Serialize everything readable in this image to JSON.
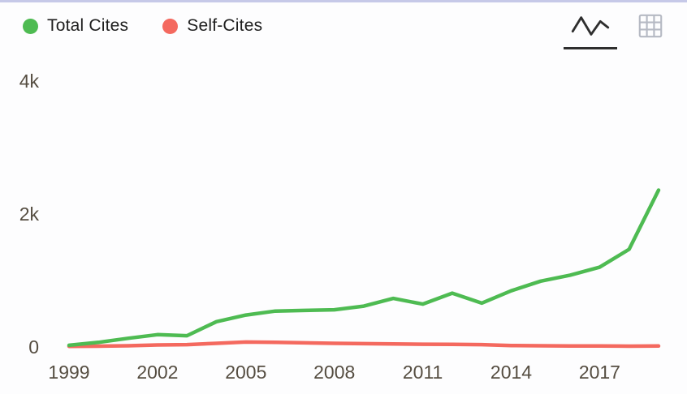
{
  "legend": [
    {
      "label": "Total Cites",
      "color": "#4ebb52"
    },
    {
      "label": "Self-Cites",
      "color": "#f4695f"
    }
  ],
  "toolbar": {
    "active_view": "line-chart",
    "views": [
      "line-chart",
      "table-grid"
    ]
  },
  "colors": {
    "background": "#fdfdfe",
    "top_border": "#c6c9e8",
    "axis_text": "#554d41",
    "icon_active": "#2e2e2e",
    "icon_inactive": "#b5b9c3",
    "total_cites": "#4ebb52",
    "self_cites": "#f4695f"
  },
  "chart_data": {
    "type": "line",
    "title": "",
    "xlabel": "",
    "ylabel": "",
    "grid": false,
    "legend_position": "top-left",
    "x": [
      1999,
      2000,
      2001,
      2002,
      2003,
      2004,
      2005,
      2006,
      2007,
      2008,
      2009,
      2010,
      2011,
      2012,
      2013,
      2014,
      2015,
      2016,
      2017,
      2018,
      2019
    ],
    "series": [
      {
        "name": "Total Cites",
        "color": "#4ebb52",
        "values": [
          25,
          70,
          130,
          185,
          170,
          380,
          480,
          540,
          550,
          560,
          615,
          730,
          645,
          810,
          660,
          845,
          990,
          1080,
          1200,
          1470,
          2360
        ]
      },
      {
        "name": "Self-Cites",
        "color": "#f4695f",
        "values": [
          10,
          12,
          18,
          30,
          35,
          55,
          75,
          70,
          62,
          55,
          50,
          45,
          42,
          40,
          35,
          22,
          18,
          15,
          15,
          12,
          15
        ]
      }
    ],
    "ylim": [
      0,
      4000
    ],
    "yticks": [
      0,
      2000,
      4000
    ],
    "ytick_labels": [
      "0",
      "2k",
      "4k"
    ],
    "xticks": [
      1999,
      2002,
      2005,
      2008,
      2011,
      2014,
      2017
    ]
  }
}
